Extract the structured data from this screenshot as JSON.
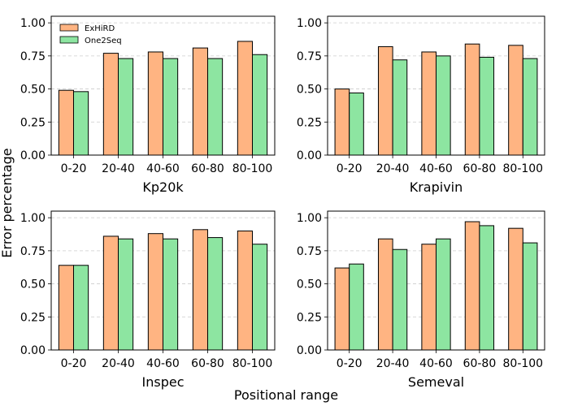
{
  "figure": {
    "ylabel": "Error percentage",
    "xlabel": "Positional range"
  },
  "legend": {
    "placement": "top-left",
    "entries": [
      {
        "label": "ExHiRD",
        "color": "#FFB482"
      },
      {
        "label": "One2Seq",
        "color": "#8DE5A1"
      }
    ]
  },
  "chart_data": [
    {
      "type": "bar",
      "subtitle": "Kp20k",
      "categories": [
        "0-20",
        "20-40",
        "40-60",
        "60-80",
        "80-100"
      ],
      "series": [
        {
          "name": "ExHiRD",
          "values": [
            0.49,
            0.77,
            0.78,
            0.81,
            0.86
          ]
        },
        {
          "name": "One2Seq",
          "values": [
            0.48,
            0.73,
            0.73,
            0.73,
            0.76
          ]
        }
      ],
      "ylim": [
        0,
        1.05
      ],
      "yticks": [
        "0.00",
        "0.25",
        "0.50",
        "0.75",
        "1.00"
      ],
      "grid": "y-dashed"
    },
    {
      "type": "bar",
      "subtitle": "Krapivin",
      "categories": [
        "0-20",
        "20-40",
        "40-60",
        "60-80",
        "80-100"
      ],
      "series": [
        {
          "name": "ExHiRD",
          "values": [
            0.5,
            0.82,
            0.78,
            0.84,
            0.83
          ]
        },
        {
          "name": "One2Seq",
          "values": [
            0.47,
            0.72,
            0.75,
            0.74,
            0.73
          ]
        }
      ],
      "ylim": [
        0,
        1.05
      ],
      "yticks": [
        "0.00",
        "0.25",
        "0.50",
        "0.75",
        "1.00"
      ],
      "grid": "y-dashed"
    },
    {
      "type": "bar",
      "subtitle": "Inspec",
      "categories": [
        "0-20",
        "20-40",
        "40-60",
        "60-80",
        "80-100"
      ],
      "series": [
        {
          "name": "ExHiRD",
          "values": [
            0.64,
            0.86,
            0.88,
            0.91,
            0.9
          ]
        },
        {
          "name": "One2Seq",
          "values": [
            0.64,
            0.84,
            0.84,
            0.85,
            0.8
          ]
        }
      ],
      "ylim": [
        0,
        1.05
      ],
      "yticks": [
        "0.00",
        "0.25",
        "0.50",
        "0.75",
        "1.00"
      ],
      "grid": "y-dashed"
    },
    {
      "type": "bar",
      "subtitle": "Semeval",
      "categories": [
        "0-20",
        "20-40",
        "40-60",
        "60-80",
        "80-100"
      ],
      "series": [
        {
          "name": "ExHiRD",
          "values": [
            0.62,
            0.84,
            0.8,
            0.97,
            0.92
          ]
        },
        {
          "name": "One2Seq",
          "values": [
            0.65,
            0.76,
            0.84,
            0.94,
            0.81
          ]
        }
      ],
      "ylim": [
        0,
        1.05
      ],
      "yticks": [
        "0.00",
        "0.25",
        "0.50",
        "0.75",
        "1.00"
      ],
      "grid": "y-dashed"
    }
  ]
}
